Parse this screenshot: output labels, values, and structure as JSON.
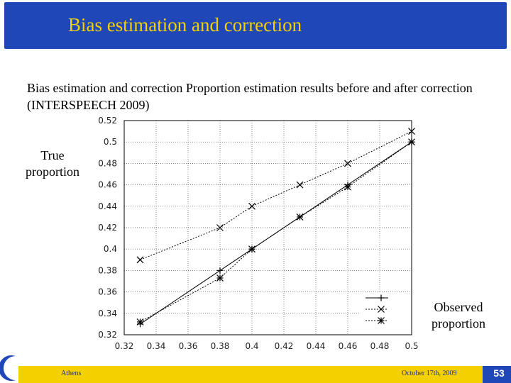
{
  "slide": {
    "title": "Bias estimation and correction",
    "description": "Bias estimation and correction  Proportion estimation results before and after correction (INTERSPEECH 2009)",
    "ylabel": "True proportion",
    "xlabel": "Observed proportion",
    "footer_left": "Athens",
    "footer_date": "October 17th,   2009",
    "page_number": "53",
    "colors": {
      "header": "#1f47b8",
      "title": "#f5d000",
      "footer": "#f5d000"
    }
  },
  "chart_data": {
    "type": "line",
    "title": "",
    "xlabel": "Observed proportion",
    "ylabel": "True proportion",
    "xlim": [
      0.32,
      0.5
    ],
    "ylim": [
      0.32,
      0.52
    ],
    "xticks": [
      "0.32",
      "0.34",
      "0.36",
      "0.38",
      "0.4",
      "0.42",
      "0.44",
      "0.46",
      "0.48",
      "0.5"
    ],
    "yticks": [
      "0.32",
      "0.34",
      "0.36",
      "0.38",
      "0.4",
      "0.42",
      "0.44",
      "0.46",
      "0.48",
      "0.5",
      "0.52"
    ],
    "grid": true,
    "legend_position": "bottom-right",
    "series": [
      {
        "marker": "plus",
        "style": "solid",
        "x": [
          0.33,
          0.38,
          0.4,
          0.46,
          0.5
        ],
        "y": [
          0.33,
          0.38,
          0.4,
          0.46,
          0.5
        ]
      },
      {
        "marker": "x",
        "style": "dotted",
        "x": [
          0.33,
          0.38,
          0.4,
          0.43,
          0.46,
          0.5
        ],
        "y": [
          0.39,
          0.42,
          0.44,
          0.46,
          0.48,
          0.51
        ]
      },
      {
        "marker": "star",
        "style": "dotted",
        "x": [
          0.33,
          0.38,
          0.4,
          0.43,
          0.46,
          0.5
        ],
        "y": [
          0.332,
          0.373,
          0.4,
          0.43,
          0.458,
          0.5
        ]
      }
    ]
  }
}
